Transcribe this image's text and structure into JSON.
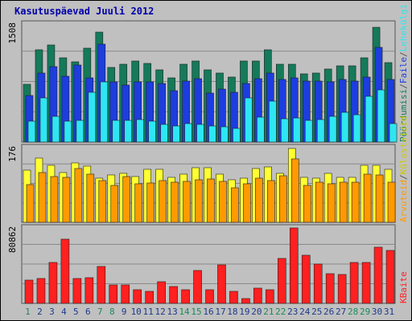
{
  "chart_data": [
    {
      "type": "bar",
      "title": "Kasutuspäevad Juuli 2012",
      "max_label": "1508",
      "ylim": [
        0,
        1508
      ],
      "categories": [
        "1",
        "2",
        "3",
        "4",
        "5",
        "6",
        "7",
        "8",
        "9",
        "10",
        "11",
        "12",
        "13",
        "14",
        "15",
        "16",
        "17",
        "18",
        "19",
        "20",
        "21",
        "22",
        "23",
        "24",
        "25",
        "26",
        "27",
        "28",
        "29",
        "30",
        "31"
      ],
      "series": [
        {
          "name": "Pöördumisi",
          "color": "#157a5a",
          "values": [
            740,
            1180,
            1240,
            1080,
            1030,
            1200,
            1410,
            950,
            990,
            1040,
            1010,
            920,
            820,
            990,
            1040,
            920,
            880,
            830,
            1040,
            1040,
            1180,
            990,
            1000,
            870,
            880,
            930,
            970,
            970,
            1080,
            1470,
            1020
          ]
        },
        {
          "name": "Faile",
          "color": "#1d3ddf",
          "values": [
            600,
            880,
            960,
            840,
            980,
            820,
            1250,
            770,
            730,
            770,
            770,
            750,
            660,
            780,
            810,
            630,
            680,
            640,
            750,
            810,
            880,
            800,
            820,
            780,
            780,
            770,
            800,
            780,
            830,
            1210,
            800
          ]
        },
        {
          "name": "Lehekülgi",
          "color": "#2ee6f2",
          "values": [
            270,
            560,
            330,
            270,
            280,
            640,
            770,
            280,
            280,
            290,
            270,
            230,
            210,
            240,
            230,
            210,
            190,
            170,
            560,
            320,
            520,
            300,
            310,
            280,
            290,
            330,
            380,
            350,
            580,
            670,
            240
          ]
        }
      ]
    },
    {
      "type": "bar",
      "max_label": "176",
      "ylim": [
        0,
        176
      ],
      "categories": [
        "1",
        "2",
        "3",
        "4",
        "5",
        "6",
        "7",
        "8",
        "9",
        "10",
        "11",
        "12",
        "13",
        "14",
        "15",
        "16",
        "17",
        "18",
        "19",
        "20",
        "21",
        "22",
        "23",
        "24",
        "25",
        "26",
        "27",
        "28",
        "29",
        "30",
        "31"
      ],
      "series": [
        {
          "name": "Külastajaid",
          "color": "#ffff33",
          "values": [
            123,
            152,
            134,
            117,
            140,
            132,
            104,
            112,
            115,
            108,
            125,
            124,
            106,
            114,
            129,
            128,
            114,
            100,
            105,
            127,
            130,
            116,
            175,
            106,
            105,
            116,
            106,
            106,
            135,
            134,
            124
          ]
        },
        {
          "name": "Arvuteid",
          "color": "#ff9a00",
          "values": [
            89,
            117,
            107,
            106,
            126,
            114,
            99,
            87,
            107,
            91,
            92,
            99,
            94,
            96,
            101,
            103,
            97,
            82,
            91,
            104,
            98,
            110,
            150,
            87,
            95,
            90,
            95,
            95,
            113,
            112,
            94
          ]
        }
      ]
    },
    {
      "type": "bar",
      "max_label": "80862",
      "ylim": [
        0,
        80862
      ],
      "categories": [
        "1",
        "2",
        "3",
        "4",
        "5",
        "6",
        "7",
        "8",
        "9",
        "10",
        "11",
        "12",
        "13",
        "14",
        "15",
        "16",
        "17",
        "18",
        "19",
        "20",
        "21",
        "22",
        "23",
        "24",
        "25",
        "26",
        "27",
        "28",
        "29",
        "30",
        "31"
      ],
      "series": [
        {
          "name": "KBaite",
          "color": "#ff2020",
          "values": [
            25000,
            26500,
            44000,
            69000,
            27000,
            27500,
            40000,
            19500,
            19500,
            14500,
            12500,
            23000,
            18000,
            15000,
            35000,
            15000,
            41500,
            13000,
            5500,
            16000,
            15000,
            48000,
            81000,
            52000,
            42000,
            32000,
            31000,
            43500,
            43500,
            60000,
            57000
          ]
        }
      ]
    }
  ],
  "x_axis": {
    "labels": [
      "1",
      "2",
      "3",
      "4",
      "5",
      "6",
      "7",
      "8",
      "9",
      "10",
      "11",
      "12",
      "13",
      "14",
      "15",
      "16",
      "17",
      "18",
      "19",
      "20",
      "21",
      "22",
      "23",
      "24",
      "25",
      "26",
      "27",
      "28",
      "29",
      "30",
      "31"
    ],
    "weekend_days": [
      1,
      7,
      8,
      14,
      15,
      21,
      22,
      28,
      29
    ],
    "weekend_color": "#1a8a5a",
    "weekday_color": "#1a3a8a"
  },
  "right_labels": {
    "top": [
      {
        "text": "Pöördumisi",
        "color": "#157a5a"
      },
      {
        "text": "/",
        "color": "#555555"
      },
      {
        "text": "Faile",
        "color": "#1d3ddf"
      },
      {
        "text": "/",
        "color": "#555555"
      },
      {
        "text": "Lehekülgi",
        "color": "#2ee6f2"
      }
    ],
    "middle": [
      {
        "text": "Arvuteid",
        "color": "#ff9a00"
      },
      {
        "text": "/",
        "color": "#555555"
      },
      {
        "text": "Külastajaid",
        "color": "#cccc00"
      }
    ],
    "bottom": [
      {
        "text": "KBaite",
        "color": "#ff2020"
      }
    ]
  },
  "colors": {
    "background": "#c0c0c0",
    "title": "#0000aa",
    "grid": "#8a8a8a"
  }
}
